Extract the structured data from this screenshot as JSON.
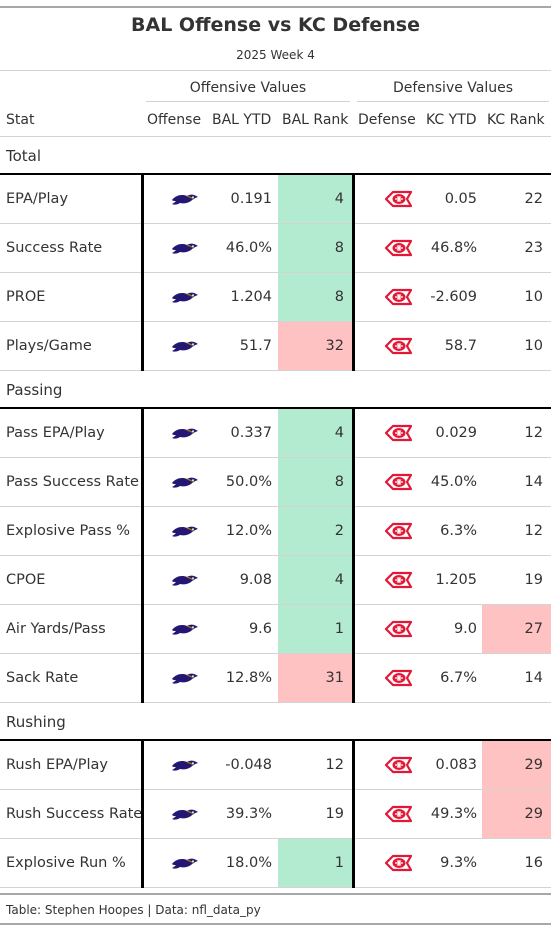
{
  "title": "BAL Offense vs KC Defense",
  "subtitle": "2025 Week 4",
  "spanners": {
    "offense": "Offensive Values",
    "defense": "Defensive Values"
  },
  "columns": {
    "stat": "Stat",
    "offense": "Offense",
    "bal_ytd": "BAL YTD",
    "bal_rank": "BAL Rank",
    "defense": "Defense",
    "kc_ytd": "KC YTD",
    "kc_rank": "KC Rank"
  },
  "colors": {
    "good": "#b3ebd1",
    "bad": "#ffc2c2",
    "ravens": "#241773",
    "chiefs": "#e31837"
  },
  "icons": {
    "offense": "ravens-logo-icon",
    "defense": "chiefs-logo-icon"
  },
  "groups": [
    {
      "label": "Total",
      "rows": [
        {
          "stat": "EPA/Play",
          "bal_ytd": "0.191",
          "bal_rank": "4",
          "bal_hl": "good",
          "kc_ytd": "0.05",
          "kc_rank": "22",
          "kc_hl": ""
        },
        {
          "stat": "Success Rate",
          "bal_ytd": "46.0%",
          "bal_rank": "8",
          "bal_hl": "good",
          "kc_ytd": "46.8%",
          "kc_rank": "23",
          "kc_hl": ""
        },
        {
          "stat": "PROE",
          "bal_ytd": "1.204",
          "bal_rank": "8",
          "bal_hl": "good",
          "kc_ytd": "-2.609",
          "kc_rank": "10",
          "kc_hl": ""
        },
        {
          "stat": "Plays/Game",
          "bal_ytd": "51.7",
          "bal_rank": "32",
          "bal_hl": "bad",
          "kc_ytd": "58.7",
          "kc_rank": "10",
          "kc_hl": ""
        }
      ]
    },
    {
      "label": "Passing",
      "rows": [
        {
          "stat": "Pass EPA/Play",
          "bal_ytd": "0.337",
          "bal_rank": "4",
          "bal_hl": "good",
          "kc_ytd": "0.029",
          "kc_rank": "12",
          "kc_hl": ""
        },
        {
          "stat": "Pass Success Rate",
          "bal_ytd": "50.0%",
          "bal_rank": "8",
          "bal_hl": "good",
          "kc_ytd": "45.0%",
          "kc_rank": "14",
          "kc_hl": ""
        },
        {
          "stat": "Explosive Pass %",
          "bal_ytd": "12.0%",
          "bal_rank": "2",
          "bal_hl": "good",
          "kc_ytd": "6.3%",
          "kc_rank": "12",
          "kc_hl": ""
        },
        {
          "stat": "CPOE",
          "bal_ytd": "9.08",
          "bal_rank": "4",
          "bal_hl": "good",
          "kc_ytd": "1.205",
          "kc_rank": "19",
          "kc_hl": ""
        },
        {
          "stat": "Air Yards/Pass",
          "bal_ytd": "9.6",
          "bal_rank": "1",
          "bal_hl": "good",
          "kc_ytd": "9.0",
          "kc_rank": "27",
          "kc_hl": "bad"
        },
        {
          "stat": "Sack Rate",
          "bal_ytd": "12.8%",
          "bal_rank": "31",
          "bal_hl": "bad",
          "kc_ytd": "6.7%",
          "kc_rank": "14",
          "kc_hl": ""
        }
      ]
    },
    {
      "label": "Rushing",
      "rows": [
        {
          "stat": "Rush EPA/Play",
          "bal_ytd": "-0.048",
          "bal_rank": "12",
          "bal_hl": "",
          "kc_ytd": "0.083",
          "kc_rank": "29",
          "kc_hl": "bad"
        },
        {
          "stat": "Rush Success Rate",
          "bal_ytd": "39.3%",
          "bal_rank": "19",
          "bal_hl": "",
          "kc_ytd": "49.3%",
          "kc_rank": "29",
          "kc_hl": "bad"
        },
        {
          "stat": "Explosive Run %",
          "bal_ytd": "18.0%",
          "bal_rank": "1",
          "bal_hl": "good",
          "kc_ytd": "9.3%",
          "kc_rank": "16",
          "kc_hl": ""
        }
      ]
    }
  ],
  "footer": "Table: Stephen Hoopes | Data: nfl_data_py"
}
